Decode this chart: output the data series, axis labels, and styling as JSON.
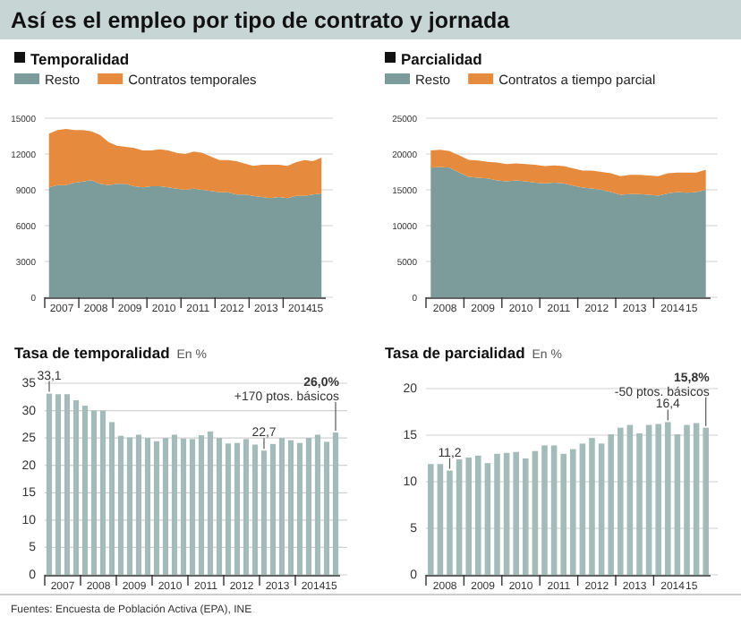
{
  "chart_data": [
    {
      "type": "area",
      "title": "Así es el empleo por tipo de contrato y jornada",
      "subtitle": "Temporalidad",
      "stacked": true,
      "legend": "top",
      "grid": "y",
      "x": [
        2007.125,
        2007.375,
        2007.625,
        2007.875,
        2008.125,
        2008.375,
        2008.625,
        2008.875,
        2009.125,
        2009.375,
        2009.625,
        2009.875,
        2010.125,
        2010.375,
        2010.625,
        2010.875,
        2011.125,
        2011.375,
        2011.625,
        2011.875,
        2012.125,
        2012.375,
        2012.625,
        2012.875,
        2013.125,
        2013.375,
        2013.625,
        2013.875,
        2014.125,
        2014.375,
        2014.625,
        2014.875,
        2015.125
      ],
      "series": [
        {
          "name": "Resto",
          "color": "#7b9c9a",
          "values": [
            9200,
            9400,
            9400,
            9600,
            9700,
            9800,
            9500,
            9400,
            9500,
            9500,
            9300,
            9200,
            9300,
            9300,
            9200,
            9100,
            9000,
            9100,
            9000,
            8900,
            8800,
            8800,
            8600,
            8600,
            8500,
            8400,
            8300,
            8400,
            8300,
            8500,
            8500,
            8600,
            8700
          ]
        },
        {
          "name": "Contratos temporales",
          "color": "#e68a3e",
          "values": [
            4500,
            4600,
            4700,
            4400,
            4300,
            4100,
            4100,
            3600,
            3200,
            3100,
            3200,
            3100,
            3000,
            3100,
            3100,
            3000,
            3000,
            3100,
            3100,
            2900,
            2700,
            2700,
            2800,
            2600,
            2500,
            2700,
            2800,
            2700,
            2700,
            2800,
            3000,
            2800,
            3000
          ]
        }
      ],
      "xlim": [
        2007,
        2015.25
      ],
      "xticks": [
        {
          "value": 2007,
          "label": null
        },
        {
          "value": 2007.5,
          "label": "2007"
        },
        {
          "value": 2008,
          "label": null
        },
        {
          "value": 2008.5,
          "label": "2008"
        },
        {
          "value": 2009,
          "label": null
        },
        {
          "value": 2009.5,
          "label": "2009"
        },
        {
          "value": 2010,
          "label": null
        },
        {
          "value": 2010.5,
          "label": "2010"
        },
        {
          "value": 2011,
          "label": null
        },
        {
          "value": 2011.5,
          "label": "2011"
        },
        {
          "value": 2012,
          "label": null
        },
        {
          "value": 2012.5,
          "label": "2012"
        },
        {
          "value": 2013,
          "label": null
        },
        {
          "value": 2013.5,
          "label": "2013"
        },
        {
          "value": 2014,
          "label": null
        },
        {
          "value": 2014.5,
          "label": "2014"
        },
        {
          "value": 2015,
          "label": "15"
        }
      ],
      "ylim": [
        0,
        15000
      ],
      "yticks": [
        0,
        3000,
        6000,
        9000,
        12000,
        15000
      ]
    },
    {
      "type": "area",
      "subtitle": "Parcialidad",
      "stacked": true,
      "legend": "top",
      "grid": "y",
      "x": [
        2008.125,
        2008.375,
        2008.625,
        2008.875,
        2009.125,
        2009.375,
        2009.625,
        2009.875,
        2010.125,
        2010.375,
        2010.625,
        2010.875,
        2011.125,
        2011.375,
        2011.625,
        2011.875,
        2012.125,
        2012.375,
        2012.625,
        2012.875,
        2013.125,
        2013.375,
        2013.625,
        2013.875,
        2014.125,
        2014.375,
        2014.625,
        2014.875,
        2015.125,
        2015.375
      ],
      "series": [
        {
          "name": "Resto",
          "color": "#7b9c9a",
          "values": [
            18100,
            18200,
            18100,
            17400,
            16800,
            16700,
            16600,
            16300,
            16200,
            16300,
            16200,
            16000,
            15900,
            16000,
            15900,
            15600,
            15300,
            15200,
            15000,
            14700,
            14300,
            14400,
            14400,
            14300,
            14200,
            14500,
            14700,
            14600,
            14700,
            15000
          ]
        },
        {
          "name": "Contratos a tiempo parcial",
          "color": "#e68a3e",
          "values": [
            2400,
            2400,
            2300,
            2400,
            2400,
            2400,
            2300,
            2500,
            2400,
            2400,
            2400,
            2500,
            2400,
            2400,
            2400,
            2400,
            2400,
            2500,
            2500,
            2600,
            2600,
            2700,
            2700,
            2700,
            2700,
            2800,
            2700,
            2800,
            2700,
            2800
          ]
        }
      ],
      "xlim": [
        2008,
        2015.5
      ],
      "xticks": [
        {
          "value": 2008,
          "label": null
        },
        {
          "value": 2008.5,
          "label": "2008"
        },
        {
          "value": 2009,
          "label": null
        },
        {
          "value": 2009.5,
          "label": "2009"
        },
        {
          "value": 2010,
          "label": null
        },
        {
          "value": 2010.5,
          "label": "2010"
        },
        {
          "value": 2011,
          "label": null
        },
        {
          "value": 2011.5,
          "label": "2011"
        },
        {
          "value": 2012,
          "label": null
        },
        {
          "value": 2012.5,
          "label": "2012"
        },
        {
          "value": 2013,
          "label": null
        },
        {
          "value": 2013.5,
          "label": "2013"
        },
        {
          "value": 2014,
          "label": null
        },
        {
          "value": 2014.5,
          "label": "2014"
        },
        {
          "value": 2015,
          "label": "15"
        }
      ],
      "ylim": [
        0,
        25000
      ],
      "yticks": [
        0,
        5000,
        10000,
        15000,
        20000,
        25000
      ]
    },
    {
      "type": "bar",
      "subtitle": "Tasa de temporalidad",
      "ylabel": "En %",
      "grid": "y",
      "color": "#a3bcba",
      "x": [
        2007.125,
        2007.375,
        2007.625,
        2007.875,
        2008.125,
        2008.375,
        2008.625,
        2008.875,
        2009.125,
        2009.375,
        2009.625,
        2009.875,
        2010.125,
        2010.375,
        2010.625,
        2010.875,
        2011.125,
        2011.375,
        2011.625,
        2011.875,
        2012.125,
        2012.375,
        2012.625,
        2012.875,
        2013.125,
        2013.375,
        2013.625,
        2013.875,
        2014.125,
        2014.375,
        2014.625,
        2014.875,
        2015.125
      ],
      "values": [
        33.1,
        33.0,
        33.0,
        31.9,
        30.9,
        30.0,
        30.0,
        27.9,
        25.4,
        25.1,
        25.6,
        25.0,
        24.4,
        25.0,
        25.6,
        24.9,
        24.8,
        25.5,
        26.2,
        25.0,
        24.0,
        24.1,
        24.8,
        23.8,
        22.7,
        23.9,
        25.0,
        24.6,
        24.1,
        25.0,
        25.6,
        24.3,
        26.0
      ],
      "xlim": [
        2007,
        2015.25
      ],
      "xticks": [
        {
          "value": 2007,
          "label": null
        },
        {
          "value": 2007.5,
          "label": "2007"
        },
        {
          "value": 2008,
          "label": null
        },
        {
          "value": 2008.5,
          "label": "2008"
        },
        {
          "value": 2009,
          "label": null
        },
        {
          "value": 2009.5,
          "label": "2009"
        },
        {
          "value": 2010,
          "label": null
        },
        {
          "value": 2010.5,
          "label": "2010"
        },
        {
          "value": 2011,
          "label": null
        },
        {
          "value": 2011.5,
          "label": "2011"
        },
        {
          "value": 2012,
          "label": null
        },
        {
          "value": 2012.5,
          "label": "2012"
        },
        {
          "value": 2013,
          "label": null
        },
        {
          "value": 2013.5,
          "label": "2013"
        },
        {
          "value": 2014,
          "label": null
        },
        {
          "value": 2014.5,
          "label": "2014"
        },
        {
          "value": 2015,
          "label": "15"
        }
      ],
      "ylim": [
        0,
        35
      ],
      "yticks": [
        0,
        5,
        10,
        15,
        20,
        25,
        30,
        35
      ],
      "annotations": [
        {
          "text": "33,1",
          "x": 2007.125,
          "y": 33.1
        },
        {
          "text": "22,7",
          "x": 2013.125,
          "y": 22.7
        },
        {
          "text": "26,0%",
          "x": 2015.125,
          "y": 26.0
        },
        {
          "text": "+170 ptos. básicos",
          "x": 2015.125,
          "y": 26.0
        },
        "Fuentes: Encuesta de Población Activa (EPA), INE"
      ]
    },
    {
      "type": "bar",
      "subtitle": "Tasa de parcialidad",
      "ylabel": "En %",
      "grid": "y",
      "color": "#a3bcba",
      "x": [
        2008.125,
        2008.375,
        2008.625,
        2008.875,
        2009.125,
        2009.375,
        2009.625,
        2009.875,
        2010.125,
        2010.375,
        2010.625,
        2010.875,
        2011.125,
        2011.375,
        2011.625,
        2011.875,
        2012.125,
        2012.375,
        2012.625,
        2012.875,
        2013.125,
        2013.375,
        2013.625,
        2013.875,
        2014.125,
        2014.375,
        2014.625,
        2014.875,
        2015.125,
        2015.375
      ],
      "values": [
        11.9,
        11.9,
        11.2,
        12.4,
        12.6,
        12.8,
        12.0,
        13.0,
        13.1,
        13.2,
        12.5,
        13.3,
        13.9,
        13.9,
        13.0,
        13.5,
        14.1,
        14.7,
        14.1,
        15.1,
        15.8,
        16.1,
        15.2,
        16.1,
        16.2,
        16.4,
        15.1,
        16.1,
        16.3,
        15.8
      ],
      "xlim": [
        2008,
        2015.5
      ],
      "xticks": [
        {
          "value": 2008,
          "label": null
        },
        {
          "value": 2008.5,
          "label": "2008"
        },
        {
          "value": 2009,
          "label": null
        },
        {
          "value": 2009.5,
          "label": "2009"
        },
        {
          "value": 2010,
          "label": null
        },
        {
          "value": 2010.5,
          "label": "2010"
        },
        {
          "value": 2011,
          "label": null
        },
        {
          "value": 2011.5,
          "label": "2011"
        },
        {
          "value": 2012,
          "label": null
        },
        {
          "value": 2012.5,
          "label": "2012"
        },
        {
          "value": 2013,
          "label": null
        },
        {
          "value": 2013.5,
          "label": "2013"
        },
        {
          "value": 2014,
          "label": null
        },
        {
          "value": 2014.5,
          "label": "2014"
        },
        {
          "value": 2015,
          "label": "15"
        }
      ],
      "ylim": [
        0,
        20
      ],
      "yticks": [
        0,
        5,
        10,
        15,
        20
      ],
      "annotations": [
        {
          "text": "11,2",
          "x": 2008.625,
          "y": 11.2
        },
        {
          "text": "16,4",
          "x": 2014.375,
          "y": 16.4
        },
        {
          "text": "15,8%",
          "x": 2015.375,
          "y": 15.8
        },
        {
          "text": "-50 ptos. básicos",
          "x": 2015.375,
          "y": 15.8
        }
      ]
    }
  ]
}
